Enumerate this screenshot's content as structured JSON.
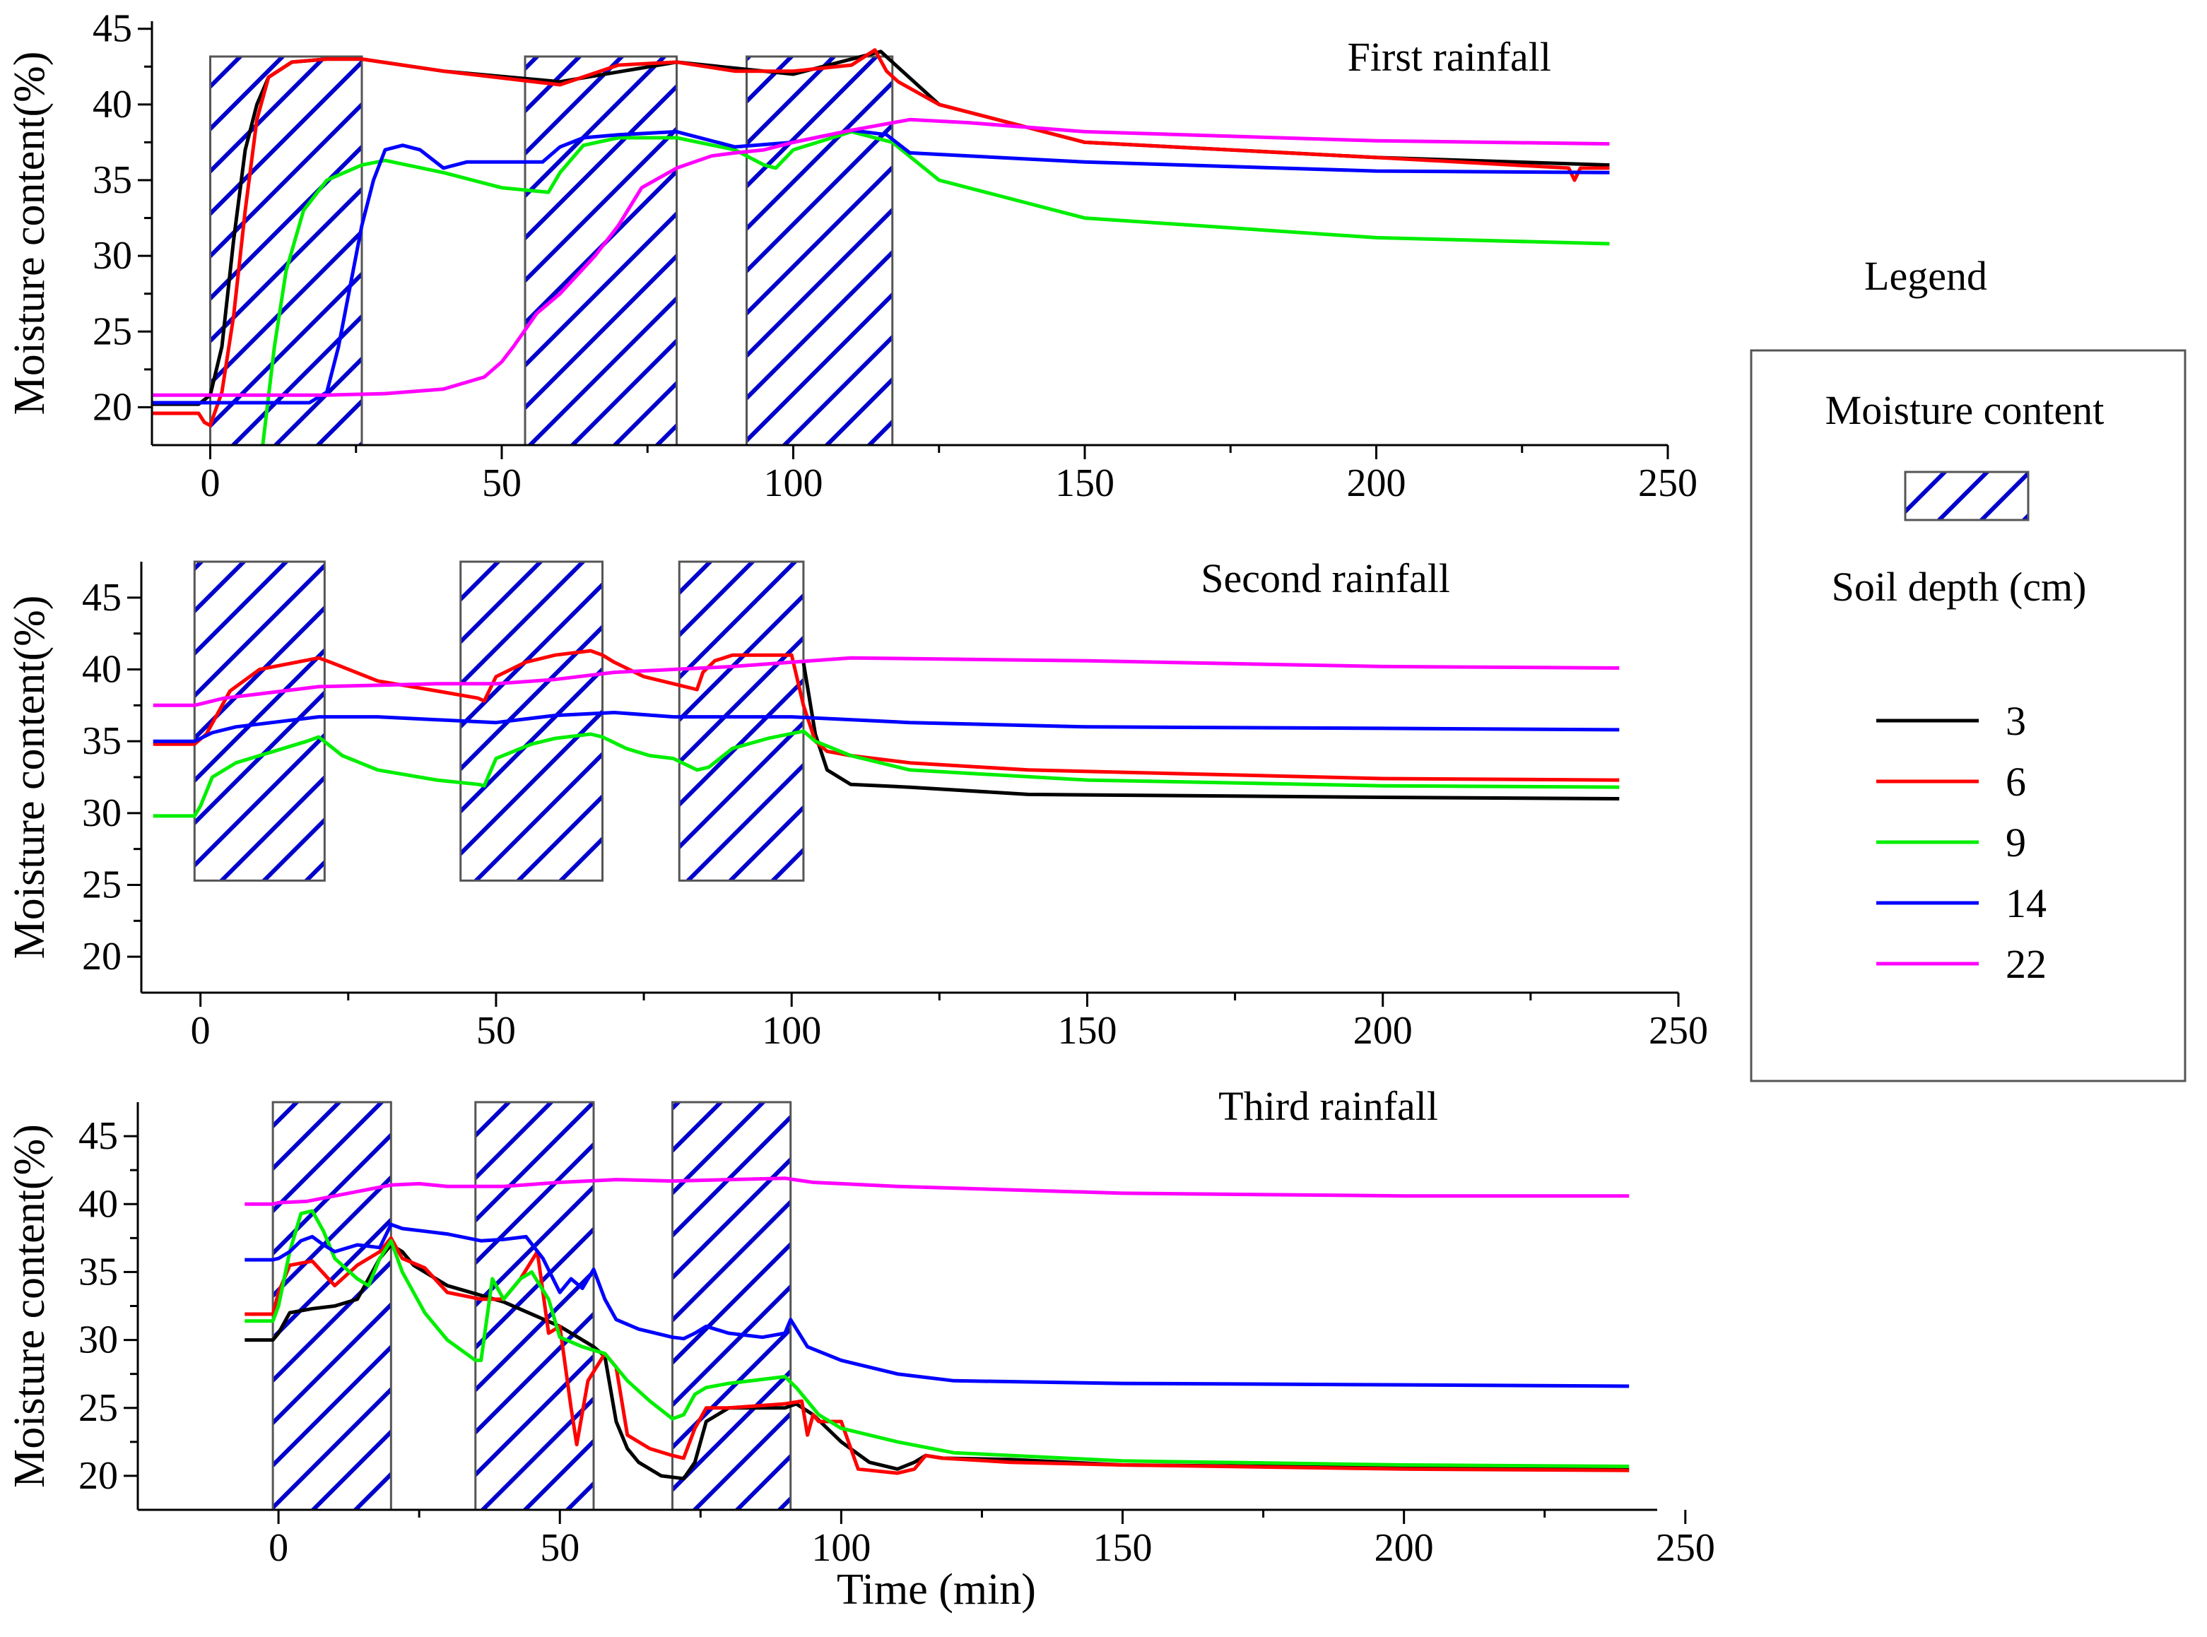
{
  "chart_data": [
    {
      "type": "line",
      "title": "First rainfall",
      "xlabel": "",
      "ylabel": "Moisture content(%)",
      "xlim": [
        -10,
        250
      ],
      "ylim": [
        17.5,
        45.5
      ],
      "x_ticks": [
        "0",
        "50",
        "100",
        "150",
        "200",
        "250"
      ],
      "y_ticks": [
        "20",
        "25",
        "30",
        "35",
        "40",
        "45"
      ],
      "rain_periods": [
        [
          0,
          26
        ],
        [
          54,
          80
        ],
        [
          92,
          117
        ]
      ],
      "series": [
        {
          "name": "3",
          "color": "#000000",
          "x": [
            -10,
            -2,
            0,
            2,
            4,
            6,
            8,
            10,
            14,
            20,
            26,
            40,
            60,
            80,
            100,
            115,
            125,
            150,
            200,
            240
          ],
          "y": [
            20.2,
            20.2,
            20.8,
            24,
            31,
            37,
            40,
            41.8,
            42.8,
            43,
            43,
            42.2,
            41.5,
            42.8,
            42,
            43.5,
            40,
            37.5,
            36.5,
            36
          ]
        },
        {
          "name": "6",
          "color": "#ff0000",
          "x": [
            -10,
            -2,
            -1,
            0,
            2,
            4,
            6,
            8,
            10,
            14,
            20,
            26,
            40,
            60,
            70,
            80,
            90,
            100,
            110,
            114,
            116,
            118,
            125,
            150,
            200,
            233,
            234,
            235,
            240
          ],
          "y": [
            19.6,
            19.6,
            19.0,
            18.8,
            21,
            26,
            33,
            39,
            41.8,
            42.8,
            43,
            43,
            42.2,
            41.3,
            42.6,
            42.8,
            42.2,
            42.2,
            42.6,
            43.6,
            42.2,
            41.5,
            40,
            37.5,
            36.5,
            35.8,
            35,
            35.8,
            35.8
          ]
        },
        {
          "name": "9",
          "color": "#00ee00",
          "x": [
            9,
            11,
            13,
            16,
            20,
            26,
            30,
            40,
            50,
            58,
            60,
            64,
            70,
            80,
            90,
            95,
            97,
            100,
            110,
            117,
            125,
            150,
            200,
            240
          ],
          "y": [
            17.5,
            24,
            29,
            33,
            35,
            36,
            36.3,
            35.5,
            34.5,
            34.2,
            35.5,
            37.3,
            37.8,
            37.8,
            37,
            36,
            35.8,
            37,
            38.2,
            37.5,
            35,
            32.5,
            31.2,
            30.8
          ]
        },
        {
          "name": "14",
          "color": "#0000ff",
          "x": [
            -10,
            17,
            20,
            22,
            24,
            26,
            28,
            30,
            33,
            36,
            40,
            44,
            50,
            57,
            60,
            64,
            70,
            80,
            90,
            100,
            110,
            116,
            120,
            150,
            200,
            240
          ],
          "y": [
            20.3,
            20.3,
            21,
            24,
            28,
            32,
            35,
            37,
            37.3,
            37,
            35.8,
            36.2,
            36.2,
            36.2,
            37.2,
            37.8,
            38,
            38.2,
            37.2,
            37.5,
            38.3,
            38,
            36.8,
            36.2,
            35.6,
            35.5
          ]
        },
        {
          "name": "22",
          "color": "#ff00ff",
          "x": [
            -10,
            20,
            30,
            40,
            47,
            50,
            52,
            56,
            60,
            66,
            70,
            74,
            80,
            86,
            90,
            95,
            100,
            110,
            120,
            130,
            150,
            200,
            240
          ],
          "y": [
            20.8,
            20.8,
            20.9,
            21.2,
            22,
            23,
            24,
            26.2,
            27.5,
            30,
            32,
            34.5,
            35.8,
            36.6,
            36.8,
            37,
            37.5,
            38.3,
            39,
            38.8,
            38.2,
            37.6,
            37.4
          ]
        }
      ]
    },
    {
      "type": "line",
      "title": "Second rainfall",
      "xlabel": "",
      "ylabel": "Moisture content(%)",
      "xlim": [
        -10,
        250
      ],
      "ylim": [
        17.5,
        47.5
      ],
      "x_ticks": [
        "0",
        "50",
        "100",
        "150",
        "200",
        "250"
      ],
      "y_ticks": [
        "20",
        "25",
        "30",
        "35",
        "40",
        "45"
      ],
      "rain_periods": [
        [
          -1,
          21
        ],
        [
          44,
          68
        ],
        [
          81,
          102
        ]
      ],
      "series": [
        {
          "name": "3",
          "color": "#000000",
          "x": [
            102,
            104,
            106,
            110,
            120,
            140,
            200,
            240
          ],
          "y": [
            40.5,
            35.5,
            33,
            32,
            31.8,
            31.3,
            31.1,
            31.0
          ]
        },
        {
          "name": "6",
          "color": "#ff0000",
          "x": [
            -8,
            -1,
            1,
            5,
            10,
            20,
            22,
            30,
            40,
            47,
            48,
            50,
            55,
            60,
            66,
            68,
            70,
            75,
            80,
            84,
            85,
            87,
            90,
            95,
            100,
            102,
            104,
            106,
            110,
            120,
            140,
            200,
            240
          ],
          "y": [
            34.8,
            34.8,
            35.5,
            38.5,
            40,
            40.8,
            40.5,
            39.2,
            38.5,
            38.0,
            37.8,
            39.5,
            40.5,
            41,
            41.3,
            41.0,
            40.5,
            39.5,
            39,
            38.6,
            39.8,
            40.6,
            41,
            41,
            41.0,
            37.5,
            35,
            34.3,
            34,
            33.5,
            33,
            32.4,
            32.3
          ]
        },
        {
          "name": "9",
          "color": "#00ee00",
          "x": [
            -8,
            -1,
            0,
            2,
            6,
            10,
            18,
            20,
            24,
            30,
            40,
            47,
            48,
            50,
            56,
            60,
            66,
            68,
            72,
            76,
            80,
            84,
            86,
            90,
            96,
            102,
            104,
            110,
            120,
            150,
            200,
            240
          ],
          "y": [
            29.8,
            29.8,
            30.5,
            32.5,
            33.5,
            34,
            35,
            35.3,
            34,
            33,
            32.3,
            32.0,
            31.9,
            33.8,
            34.8,
            35.2,
            35.5,
            35.3,
            34.5,
            34,
            33.8,
            33,
            33.2,
            34.5,
            35.2,
            35.7,
            35,
            34,
            33,
            32.3,
            31.9,
            31.8
          ]
        },
        {
          "name": "14",
          "color": "#0000ff",
          "x": [
            -8,
            -1,
            0,
            2,
            6,
            10,
            16,
            20,
            30,
            40,
            50,
            60,
            70,
            80,
            100,
            120,
            150,
            200,
            240
          ],
          "y": [
            35.0,
            35.0,
            35.2,
            35.6,
            36,
            36.2,
            36.5,
            36.7,
            36.7,
            36.5,
            36.3,
            36.8,
            37,
            36.7,
            36.7,
            36.3,
            36,
            35.9,
            35.8
          ]
        },
        {
          "name": "22",
          "color": "#ff00ff",
          "x": [
            -8,
            -1,
            0,
            4,
            10,
            20,
            30,
            40,
            50,
            60,
            70,
            80,
            90,
            100,
            110,
            150,
            200,
            240
          ],
          "y": [
            37.5,
            37.5,
            37.6,
            38,
            38.3,
            38.8,
            38.9,
            39,
            39,
            39.3,
            39.8,
            40,
            40.2,
            40.5,
            40.8,
            40.6,
            40.2,
            40.1
          ]
        }
      ]
    },
    {
      "type": "line",
      "title": "Third rainfall",
      "xlabel": "Time (min)",
      "ylabel": "Moisture content(%)",
      "xlim": [
        -25,
        245
      ],
      "ylim": [
        17.5,
        47.5
      ],
      "x_ticks": [
        "0",
        "50",
        "100",
        "150",
        "200",
        "250"
      ],
      "y_ticks": [
        "20",
        "25",
        "30",
        "35",
        "40",
        "45"
      ],
      "rain_periods": [
        [
          -1,
          20
        ],
        [
          35,
          56
        ],
        [
          70,
          91
        ]
      ],
      "series": [
        {
          "name": "3",
          "color": "#000000",
          "x": [
            -6,
            -1,
            0,
            2,
            6,
            10,
            14,
            16,
            18,
            20,
            22,
            24,
            30,
            40,
            50,
            56,
            58,
            60,
            62,
            64,
            68,
            70,
            72,
            74,
            76,
            80,
            90,
            92,
            95,
            100,
            105,
            110,
            113,
            115,
            118,
            130,
            150,
            200,
            240
          ],
          "y": [
            30,
            30,
            30.5,
            32,
            32.3,
            32.5,
            33,
            34.5,
            36,
            37,
            36.5,
            35.5,
            34,
            32.8,
            31,
            29.5,
            28.8,
            24,
            22,
            21,
            20,
            19.9,
            19.8,
            21,
            24,
            25,
            25,
            25.3,
            24.5,
            22.5,
            21,
            20.5,
            21,
            21.5,
            21.3,
            21.2,
            20.8,
            20.6,
            20.5
          ]
        },
        {
          "name": "6",
          "color": "#ff0000",
          "x": [
            -6,
            -1,
            0,
            2,
            6,
            10,
            14,
            18,
            20,
            22,
            26,
            30,
            36,
            40,
            43,
            46,
            48,
            50,
            52,
            53,
            55,
            58,
            60,
            62,
            66,
            70,
            72,
            74,
            76,
            80,
            90,
            93,
            94,
            95,
            96,
            98,
            100,
            103,
            110,
            113,
            115,
            118,
            130,
            150,
            200,
            240
          ],
          "y": [
            31.9,
            31.9,
            33.5,
            35.5,
            35.8,
            34,
            35.5,
            36.5,
            37.5,
            36,
            35.3,
            33.5,
            33,
            33,
            34.5,
            36.5,
            30.5,
            31,
            25,
            22.3,
            27,
            29,
            28,
            23,
            22,
            21.5,
            21.3,
            23.5,
            25,
            25,
            25.3,
            25.5,
            23,
            24.5,
            24,
            24,
            24,
            20.5,
            20.2,
            20.5,
            21.5,
            21.3,
            21.0,
            20.8,
            20.5,
            20.4
          ]
        },
        {
          "name": "9",
          "color": "#00ee00",
          "x": [
            -6,
            -1,
            0,
            2,
            4,
            6,
            8,
            10,
            14,
            16,
            18,
            20,
            22,
            26,
            30,
            35,
            36,
            38,
            40,
            43,
            45,
            48,
            50,
            54,
            58,
            62,
            66,
            70,
            72,
            74,
            76,
            80,
            90,
            92,
            94,
            96,
            100,
            110,
            120,
            150,
            200,
            240
          ],
          "y": [
            31.4,
            31.4,
            32.5,
            36.5,
            39.3,
            39.5,
            38,
            36,
            34.5,
            34,
            36,
            37.3,
            35,
            32,
            30,
            28.5,
            28.5,
            34.5,
            33,
            34.5,
            35,
            33,
            30.2,
            29.5,
            29,
            27,
            25.5,
            24.2,
            24.5,
            26,
            26.5,
            26.8,
            27.3,
            26.5,
            25.5,
            24.5,
            23.5,
            22.5,
            21.7,
            21.1,
            20.8,
            20.7
          ]
        },
        {
          "name": "14",
          "color": "#0000ff",
          "x": [
            -6,
            -1,
            0,
            2,
            4,
            6,
            8,
            10,
            14,
            18,
            20,
            22,
            26,
            30,
            36,
            40,
            44,
            47,
            50,
            52,
            54,
            56,
            58,
            60,
            64,
            70,
            72,
            74,
            76,
            80,
            86,
            90,
            91,
            94,
            100,
            110,
            120,
            150,
            200,
            240
          ],
          "y": [
            35.9,
            35.9,
            36,
            36.5,
            37.3,
            37.6,
            37,
            36.5,
            37,
            36.8,
            38.5,
            38.2,
            38,
            37.8,
            37.3,
            37.4,
            37.6,
            36,
            33.5,
            34.5,
            33.8,
            35.2,
            33,
            31.5,
            30.8,
            30.2,
            30.1,
            30.5,
            31,
            30.5,
            30.2,
            30.5,
            31.5,
            29.5,
            28.5,
            27.5,
            27,
            26.8,
            26.7,
            26.6
          ]
        },
        {
          "name": "22",
          "color": "#ff00ff",
          "x": [
            -6,
            -1,
            0,
            5,
            10,
            15,
            20,
            25,
            30,
            40,
            50,
            60,
            70,
            80,
            90,
            95,
            100,
            110,
            150,
            200,
            240
          ],
          "y": [
            40,
            40,
            40.1,
            40.2,
            40.6,
            41,
            41.4,
            41.5,
            41.3,
            41.3,
            41.6,
            41.8,
            41.7,
            41.8,
            41.9,
            41.6,
            41.5,
            41.3,
            40.8,
            40.6,
            40.6
          ]
        }
      ]
    }
  ],
  "legend": {
    "title": "Legend",
    "rain_label": "Moisture content",
    "depth_label": "Soil depth (cm)",
    "items": [
      {
        "name": "3",
        "color": "#000000"
      },
      {
        "name": "6",
        "color": "#ff0000"
      },
      {
        "name": "9",
        "color": "#00ee00"
      },
      {
        "name": "14",
        "color": "#0000ff"
      },
      {
        "name": "22",
        "color": "#ff00ff"
      }
    ]
  }
}
